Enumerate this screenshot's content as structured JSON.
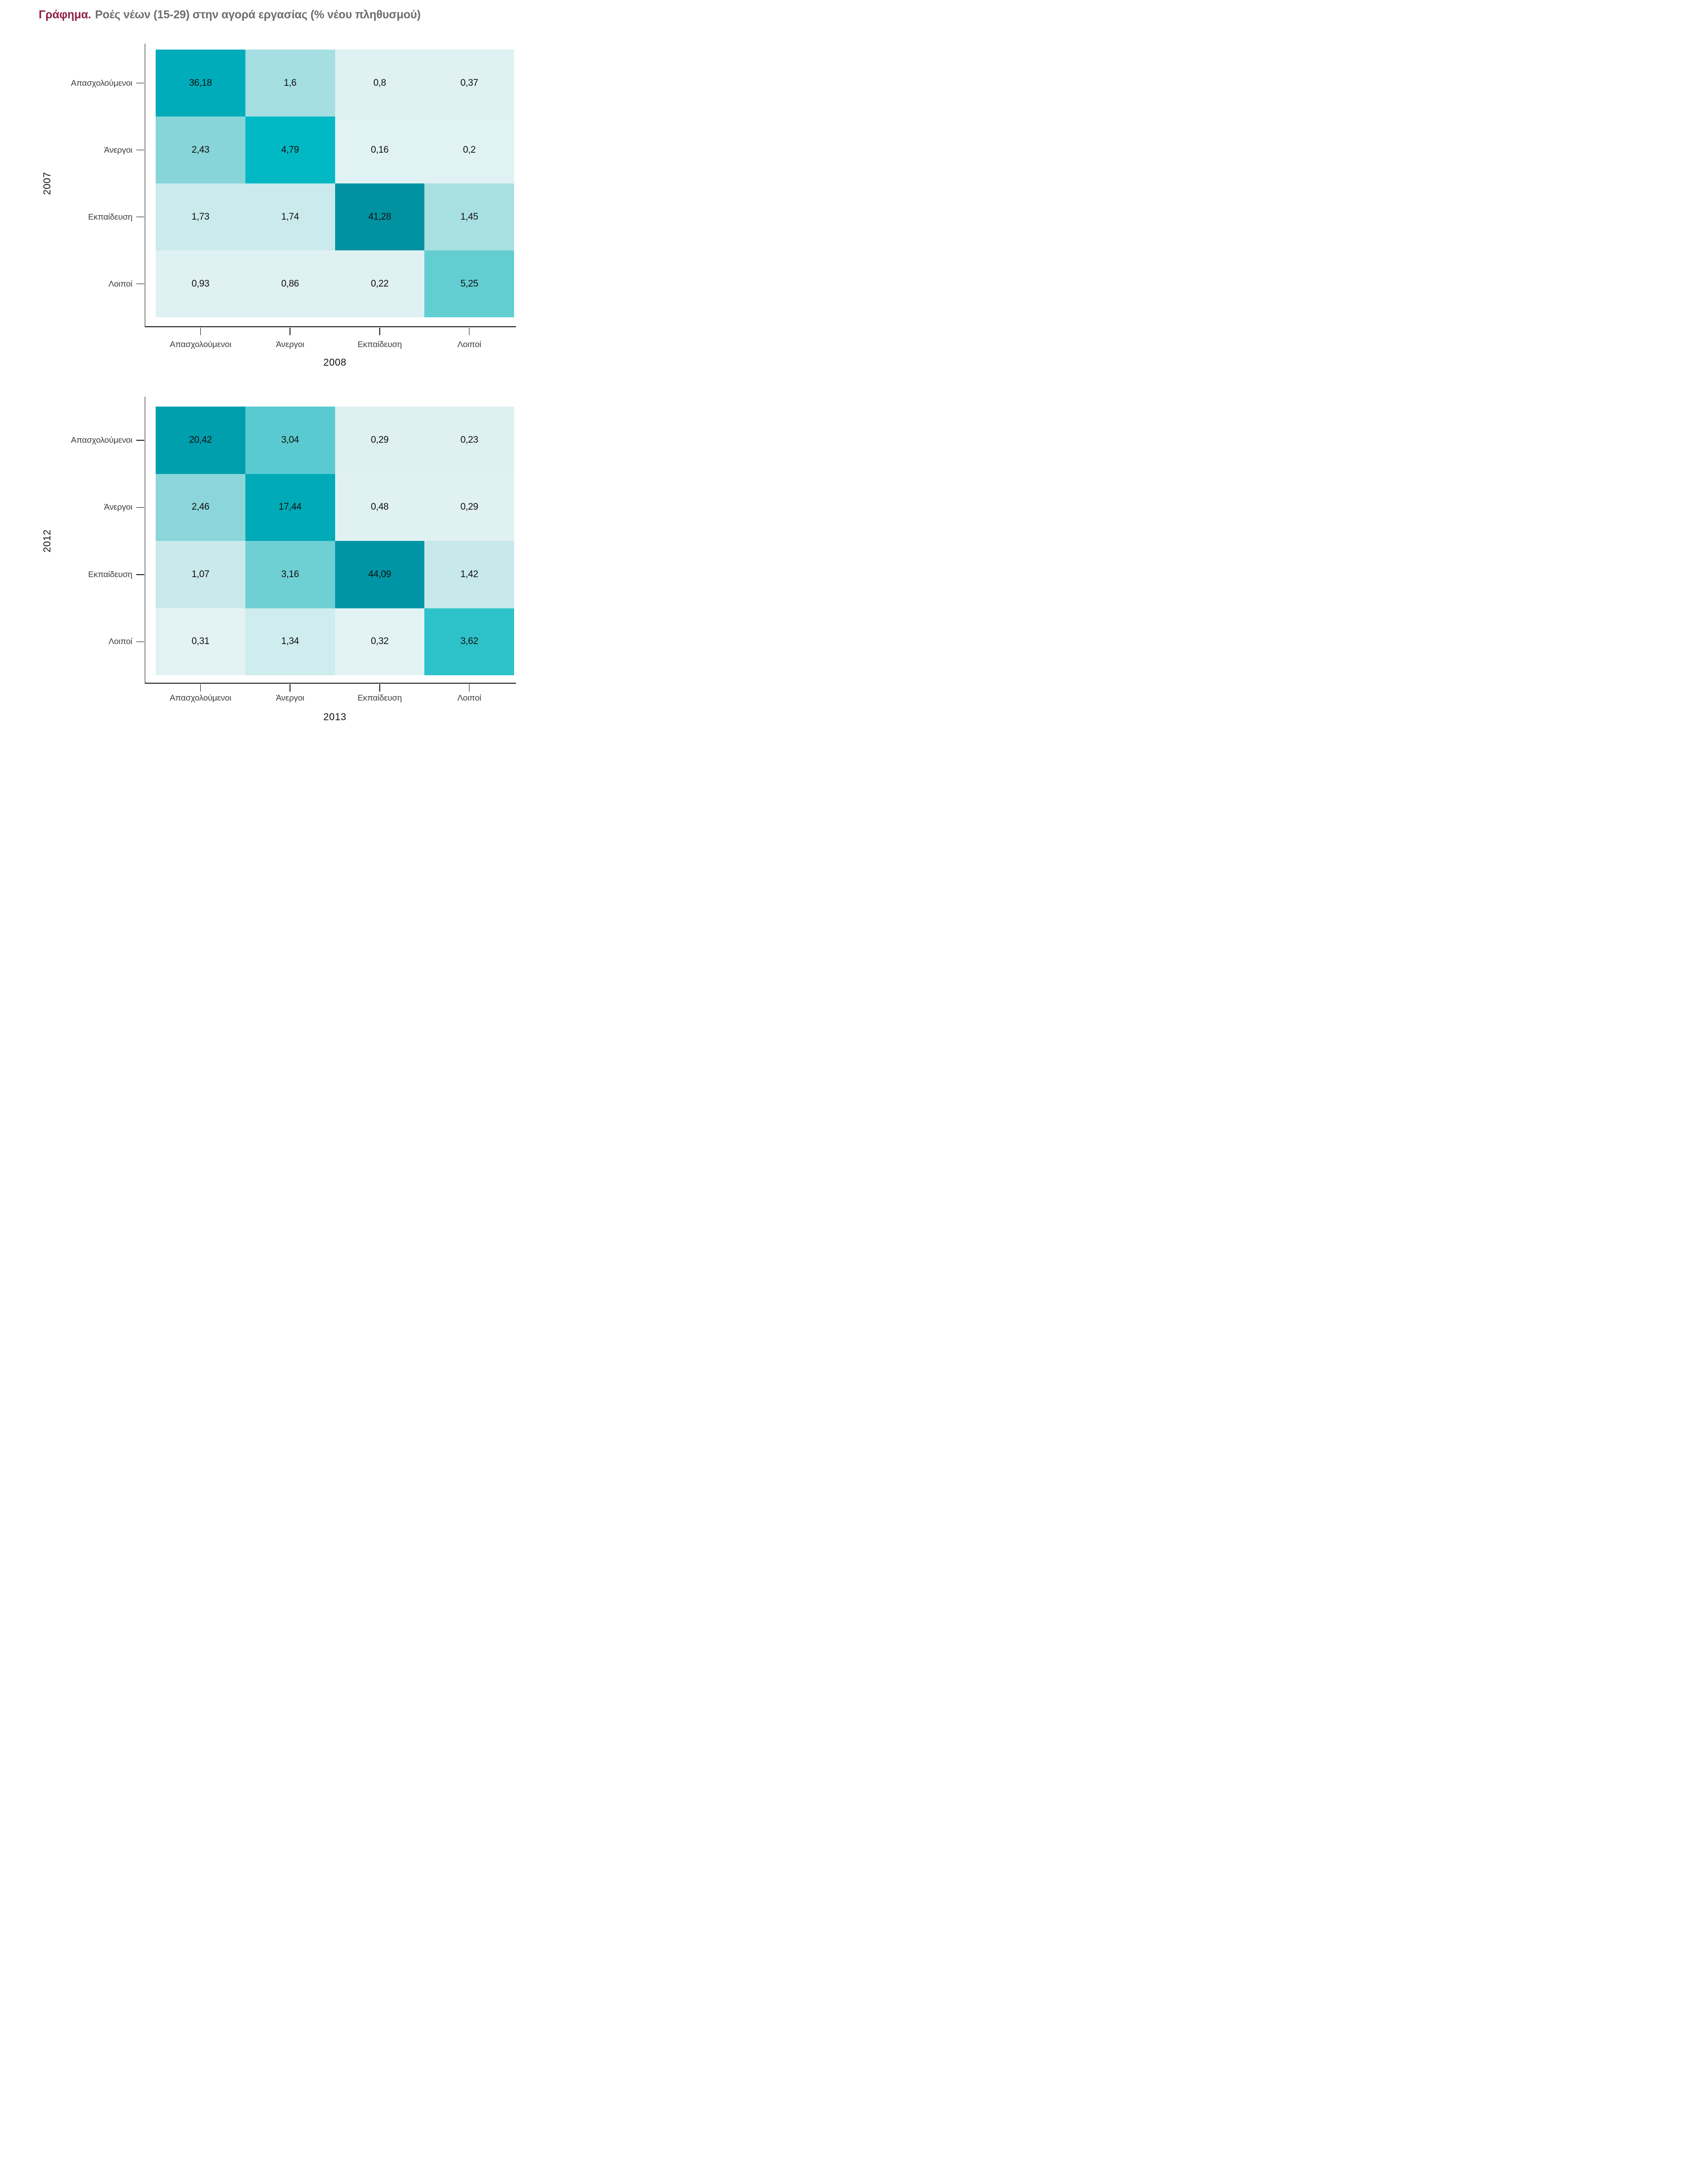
{
  "page_title": {
    "prefix": "Γράφημα.",
    "rest": "Ροές νέων (15-29) στην αγορά εργασίας (% νέου πληθυσμού)"
  },
  "colors": {
    "title_prefix": "#8e2144",
    "title_rest": "#6d6e71",
    "axis_line": "#222222",
    "tick_label_text": "#3d3d3d",
    "cell_value_text": "#101010"
  },
  "chart_data": [
    {
      "type": "heatmap",
      "ylabel": "2007",
      "xlabel": "2008",
      "rows": [
        "Απασχολούμενοι",
        "Άνεργοι",
        "Εκπαίδευση",
        "Λοιποί"
      ],
      "columns": [
        "Απασχολούμενοι",
        "Άνεργοι",
        "Εκπαίδευση",
        "Λοιποί"
      ],
      "values": [
        [
          36.18,
          1.6,
          0.8,
          0.37
        ],
        [
          2.43,
          4.79,
          0.16,
          0.2
        ],
        [
          1.73,
          1.74,
          41.28,
          1.45
        ],
        [
          0.93,
          0.86,
          0.22,
          5.25
        ]
      ],
      "value_labels": [
        [
          "36,18",
          "1,6",
          "0,8",
          "0,37"
        ],
        [
          "2,43",
          "4,79",
          "0,16",
          "0,2"
        ],
        [
          "1,73",
          "1,74",
          "41,28",
          "1,45"
        ],
        [
          "0,93",
          "0,86",
          "0,22",
          "5,25"
        ]
      ],
      "cell_colors": [
        [
          "#00ACBA",
          "#A5DFE2",
          "#DFF1F3",
          "#DFF1F3"
        ],
        [
          "#87D5D9",
          "#00B9C4",
          "#E1F2F4",
          "#E1F2F4"
        ],
        [
          "#CBEAEC",
          "#CBEAEC",
          "#0092A1",
          "#A8E0E2"
        ],
        [
          "#E0F1F3",
          "#E0F1F3",
          "#E0F1F3",
          "#63CED2"
        ]
      ],
      "decimal_separator": ",",
      "legend": "none",
      "grid": "off"
    },
    {
      "type": "heatmap",
      "ylabel": "2012",
      "xlabel": "2013",
      "rows": [
        "Απασχολούμενοι",
        "Άνεργοι",
        "Εκπαίδευση",
        "Λοιποί"
      ],
      "columns": [
        "Απασχολούμενοι",
        "Άνεργοι",
        "Εκπαίδευση",
        "Λοιποί"
      ],
      "values": [
        [
          20.42,
          3.04,
          0.29,
          0.23
        ],
        [
          2.46,
          17.44,
          0.48,
          0.29
        ],
        [
          1.07,
          3.16,
          44.09,
          1.42
        ],
        [
          0.31,
          1.34,
          0.32,
          3.62
        ]
      ],
      "value_labels": [
        [
          "20,42",
          "3,04",
          "0,29",
          "0,23"
        ],
        [
          "2,46",
          "17,44",
          "0,48",
          "0,29"
        ],
        [
          "1,07",
          "3,16",
          "44,09",
          "1,42"
        ],
        [
          "0,31",
          "1,34",
          "0,32",
          "3,62"
        ]
      ],
      "cell_colors": [
        [
          "#009FAD",
          "#59CBD0",
          "#DFF0F2",
          "#DFF0F2"
        ],
        [
          "#8AD6DA",
          "#00AAB6",
          "#E0F1F3",
          "#E0F1F3"
        ],
        [
          "#C9E9EB",
          "#6FD0D4",
          "#0095A5",
          "#C7E9EB"
        ],
        [
          "#E3F3F4",
          "#CFECEE",
          "#E3F3F4",
          "#2DC2CA"
        ]
      ],
      "decimal_separator": ",",
      "legend": "none",
      "grid": "off"
    }
  ]
}
